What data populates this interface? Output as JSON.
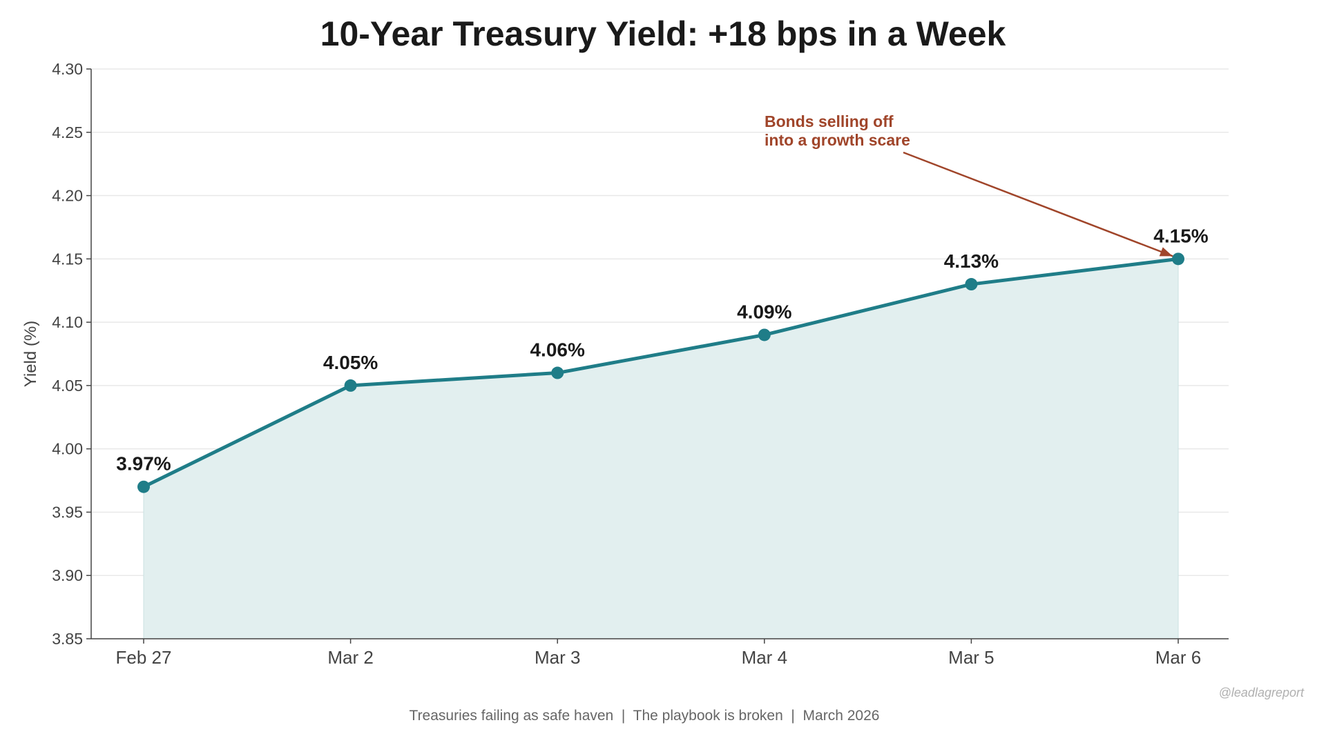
{
  "chart_data": {
    "type": "line",
    "title": "10-Year Treasury Yield: +18 bps in a Week",
    "ylabel": "Yield (%)",
    "xlabel": "",
    "categories": [
      "Feb 27",
      "Mar 2",
      "Mar 3",
      "Mar 4",
      "Mar 5",
      "Mar 6"
    ],
    "values": [
      3.97,
      4.05,
      4.06,
      4.09,
      4.13,
      4.15
    ],
    "data_labels": [
      "3.97%",
      "4.05%",
      "4.06%",
      "4.09%",
      "4.13%",
      "4.15%"
    ],
    "ylim": [
      3.85,
      4.3
    ],
    "yticks": [
      "3.85",
      "3.90",
      "3.95",
      "4.00",
      "4.05",
      "4.10",
      "4.15",
      "4.20",
      "4.25",
      "4.30"
    ],
    "grid": true,
    "area_fill": true,
    "annotation": {
      "lines": [
        "Bonds selling off",
        "into a growth scare"
      ],
      "target_category": "Mar 6",
      "color": "#a0452a"
    },
    "colors": {
      "line": "#1f7d88",
      "fill": "#e2efef",
      "annotation": "#a0452a"
    }
  },
  "footer": "Treasuries failing as safe haven  |  The playbook is broken  |  March 2026",
  "watermark": "@leadlagreport"
}
